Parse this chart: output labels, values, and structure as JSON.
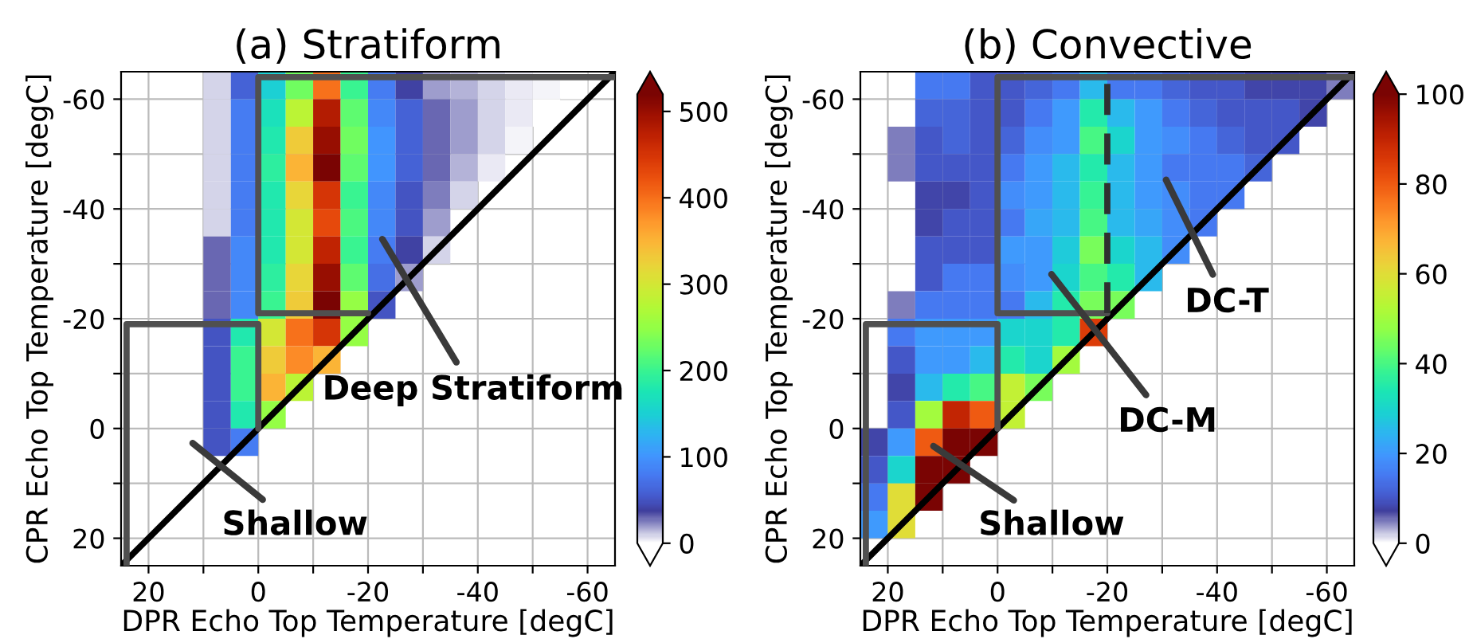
{
  "chart_data": [
    {
      "type": "heatmap",
      "title": "(a) Stratiform",
      "xlabel": "DPR Echo Top Temperature [degC]",
      "ylabel": "CPR Echo Top Temperature [degC]",
      "x": [
        22.5,
        17.5,
        12.5,
        7.5,
        2.5,
        -2.5,
        -7.5,
        -12.5,
        -17.5,
        -22.5,
        -27.5,
        -32.5,
        -37.5,
        -42.5,
        -47.5,
        -52.5,
        -57.5,
        -62.5
      ],
      "y": [
        -62.5,
        -57.5,
        -52.5,
        -47.5,
        -42.5,
        -37.5,
        -32.5,
        -27.5,
        -22.5,
        -17.5,
        -12.5,
        -7.5,
        -2.5,
        2.5
      ],
      "cells": [
        [
          null,
          null,
          null,
          10,
          60,
          150,
          230,
          400,
          200,
          80,
          40,
          20,
          15,
          10,
          5,
          3,
          2,
          null
        ],
        [
          null,
          null,
          null,
          10,
          80,
          170,
          280,
          480,
          220,
          90,
          60,
          30,
          20,
          10,
          5,
          2,
          null,
          null
        ],
        [
          null,
          null,
          null,
          10,
          80,
          180,
          330,
          500,
          230,
          100,
          60,
          30,
          20,
          10,
          3,
          null,
          null,
          null
        ],
        [
          null,
          null,
          null,
          10,
          80,
          190,
          350,
          520,
          220,
          100,
          60,
          30,
          15,
          5,
          null,
          null,
          null,
          null
        ],
        [
          null,
          null,
          null,
          10,
          80,
          180,
          320,
          450,
          200,
          90,
          50,
          25,
          10,
          null,
          null,
          null,
          null,
          null
        ],
        [
          null,
          null,
          null,
          10,
          80,
          180,
          300,
          430,
          210,
          90,
          50,
          20,
          null,
          null,
          null,
          null,
          null,
          null
        ],
        [
          null,
          null,
          null,
          30,
          90,
          180,
          300,
          470,
          200,
          80,
          40,
          10,
          null,
          null,
          null,
          null,
          null,
          null
        ],
        [
          null,
          null,
          null,
          30,
          90,
          190,
          320,
          500,
          220,
          70,
          20,
          null,
          null,
          null,
          null,
          null,
          null,
          null
        ],
        [
          null,
          null,
          null,
          30,
          90,
          200,
          330,
          520,
          250,
          50,
          null,
          null,
          null,
          null,
          null,
          null,
          null,
          null
        ],
        [
          null,
          null,
          null,
          50,
          180,
          300,
          400,
          450,
          250,
          null,
          null,
          null,
          null,
          null,
          null,
          null,
          null,
          null
        ],
        [
          null,
          null,
          null,
          50,
          200,
          330,
          380,
          350,
          null,
          null,
          null,
          null,
          null,
          null,
          null,
          null,
          null,
          null
        ],
        [
          null,
          null,
          null,
          50,
          200,
          350,
          280,
          null,
          null,
          null,
          null,
          null,
          null,
          null,
          null,
          null,
          null,
          null
        ],
        [
          null,
          null,
          null,
          50,
          180,
          250,
          null,
          null,
          null,
          null,
          null,
          null,
          null,
          null,
          null,
          null,
          null,
          null
        ],
        [
          null,
          null,
          null,
          50,
          80,
          null,
          null,
          null,
          null,
          null,
          null,
          null,
          null,
          null,
          null,
          null,
          null,
          null
        ]
      ],
      "clim": [
        0,
        520
      ],
      "cticks": [
        0,
        100,
        200,
        300,
        400,
        500
      ],
      "xlim": [
        25,
        -65
      ],
      "ylim": [
        25,
        -65
      ],
      "xticks": [
        20,
        {
          "value": 10,
          "label": null
        },
        0,
        {
          "value": -10,
          "label": null
        },
        -20,
        {
          "value": -30,
          "label": null
        },
        -40,
        {
          "value": -50,
          "label": null
        },
        -60
      ],
      "yticks": [
        20,
        {
          "value": 10,
          "label": null
        },
        0,
        {
          "value": -10,
          "label": null
        },
        -20,
        {
          "value": -30,
          "label": null
        },
        -40,
        {
          "value": -50,
          "label": null
        },
        -60
      ],
      "grid": true,
      "series": [
        {
          "type": "line",
          "x": [
            25,
            -65
          ],
          "values": [
            25,
            -65
          ],
          "color": "#000000",
          "line_style": "solid"
        },
        {
          "type": "line",
          "x": [
            24,
            24,
            0,
            0
          ],
          "values": [
            25,
            -19,
            -19,
            0
          ],
          "color": "#505050",
          "line_style": "solid"
        },
        {
          "type": "line",
          "x": [
            -20,
            0,
            0,
            -65
          ],
          "values": [
            -21,
            -21,
            -64,
            -64
          ],
          "color": "#505050",
          "line_style": "solid"
        }
      ],
      "annotations": [
        "Deep Stratiform",
        "Shallow"
      ]
    },
    {
      "type": "heatmap",
      "title": "(b) Convective",
      "xlabel": "DPR Echo Top Temperature [degC]",
      "ylabel": "CPR Echo Top Temperature [degC]",
      "x": [
        22.5,
        17.5,
        12.5,
        7.5,
        2.5,
        -2.5,
        -7.5,
        -12.5,
        -17.5,
        -22.5,
        -27.5,
        -32.5,
        -37.5,
        -42.5,
        -47.5,
        -52.5,
        -57.5,
        -62.5
      ],
      "y": [
        -62.5,
        -57.5,
        -52.5,
        -47.5,
        -42.5,
        -37.5,
        -32.5,
        -27.5,
        -22.5,
        -17.5,
        -12.5,
        -7.5,
        -2.5,
        2.5,
        7.5,
        12.5,
        17.5
      ],
      "cells": [
        [
          null,
          null,
          15,
          15,
          10,
          10,
          12,
          15,
          25,
          15,
          15,
          12,
          10,
          10,
          8,
          8,
          8,
          5
        ],
        [
          null,
          null,
          12,
          12,
          10,
          10,
          15,
          20,
          35,
          25,
          20,
          15,
          12,
          10,
          10,
          10,
          8,
          null
        ],
        [
          null,
          5,
          10,
          12,
          10,
          12,
          18,
          20,
          40,
          30,
          20,
          18,
          15,
          12,
          10,
          10,
          null,
          null
        ],
        [
          null,
          5,
          10,
          10,
          10,
          15,
          20,
          25,
          35,
          25,
          20,
          15,
          15,
          15,
          12,
          null,
          null,
          null
        ],
        [
          null,
          null,
          8,
          8,
          10,
          18,
          20,
          25,
          38,
          25,
          20,
          18,
          15,
          15,
          null,
          null,
          null,
          null
        ],
        [
          null,
          null,
          8,
          10,
          10,
          15,
          22,
          25,
          40,
          25,
          22,
          18,
          15,
          null,
          null,
          null,
          null,
          null
        ],
        [
          null,
          null,
          10,
          10,
          10,
          20,
          20,
          28,
          45,
          30,
          25,
          18,
          null,
          null,
          null,
          null,
          null,
          null
        ],
        [
          null,
          null,
          10,
          15,
          15,
          18,
          20,
          30,
          40,
          35,
          25,
          null,
          null,
          null,
          null,
          null,
          null,
          null
        ],
        [
          null,
          5,
          15,
          15,
          15,
          15,
          25,
          35,
          45,
          45,
          null,
          null,
          null,
          null,
          null,
          null,
          null,
          null
        ],
        [
          null,
          15,
          20,
          20,
          20,
          30,
          30,
          35,
          85,
          null,
          null,
          null,
          null,
          null,
          null,
          null,
          null,
          null
        ],
        [
          null,
          10,
          20,
          20,
          25,
          35,
          30,
          50,
          null,
          null,
          null,
          null,
          null,
          null,
          null,
          null,
          null,
          null
        ],
        [
          null,
          8,
          25,
          35,
          40,
          55,
          45,
          null,
          null,
          null,
          null,
          null,
          null,
          null,
          null,
          null,
          null,
          null
        ],
        [
          null,
          10,
          50,
          90,
          80,
          55,
          null,
          null,
          null,
          null,
          null,
          null,
          null,
          null,
          null,
          null,
          null,
          null
        ],
        [
          8,
          20,
          80,
          100,
          100,
          null,
          null,
          null,
          null,
          null,
          null,
          null,
          null,
          null,
          null,
          null,
          null,
          null
        ],
        [
          10,
          30,
          100,
          100,
          null,
          null,
          null,
          null,
          null,
          null,
          null,
          null,
          null,
          null,
          null,
          null,
          null,
          null
        ],
        [
          15,
          60,
          100,
          null,
          null,
          null,
          null,
          null,
          null,
          null,
          null,
          null,
          null,
          null,
          null,
          null,
          null,
          null
        ],
        [
          20,
          60,
          null,
          null,
          null,
          null,
          null,
          null,
          null,
          null,
          null,
          null,
          null,
          null,
          null,
          null,
          null,
          null
        ]
      ],
      "clim": [
        0,
        100
      ],
      "cticks": [
        0,
        20,
        40,
        60,
        80,
        100
      ],
      "xlim": [
        25,
        -65
      ],
      "ylim": [
        25,
        -65
      ],
      "xticks": [
        20,
        {
          "value": 10,
          "label": null
        },
        0,
        {
          "value": -10,
          "label": null
        },
        -20,
        {
          "value": -30,
          "label": null
        },
        -40,
        {
          "value": -50,
          "label": null
        },
        -60
      ],
      "yticks": [
        20,
        {
          "value": 10,
          "label": null
        },
        0,
        {
          "value": -10,
          "label": null
        },
        -20,
        {
          "value": -30,
          "label": null
        },
        -40,
        {
          "value": -50,
          "label": null
        },
        -60
      ],
      "grid": true,
      "series": [
        {
          "type": "line",
          "x": [
            25,
            -65
          ],
          "values": [
            25,
            -65
          ],
          "color": "#000000",
          "line_style": "solid"
        },
        {
          "type": "line",
          "x": [
            24,
            24,
            0,
            0
          ],
          "values": [
            25,
            -19,
            -19,
            0
          ],
          "color": "#505050",
          "line_style": "solid"
        },
        {
          "type": "line",
          "x": [
            -20,
            0,
            0,
            -65
          ],
          "values": [
            -21,
            -21,
            -64,
            -64
          ],
          "color": "#505050",
          "line_style": "solid"
        },
        {
          "type": "line",
          "x": [
            -20,
            -20
          ],
          "values": [
            -21,
            -64
          ],
          "color": "#303030",
          "line_style": "dashed"
        }
      ],
      "annotations": [
        "Shallow",
        "DC-M",
        "DC-T"
      ]
    }
  ]
}
